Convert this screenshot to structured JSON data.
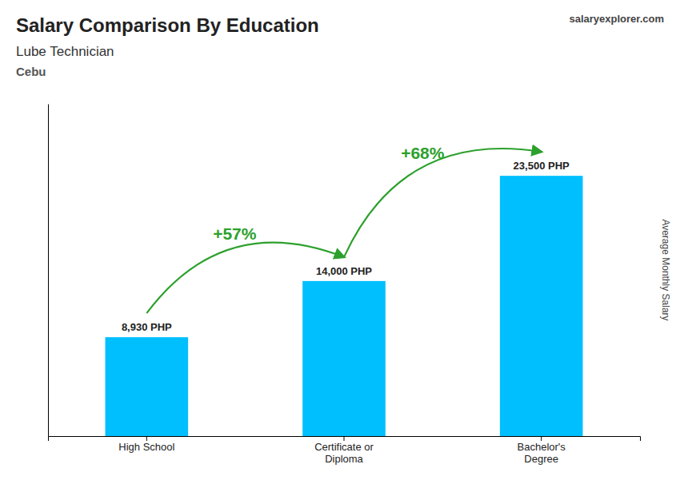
{
  "chart_data": {
    "type": "bar",
    "title": "Salary Comparison By Education",
    "subtitle": "Lube Technician",
    "annotations": [
      "Cebu",
      "+57%",
      "+68%",
      "salaryexplorer.com"
    ],
    "categories": [
      "High School",
      "Certificate or\nDiploma",
      "Bachelor's\nDegree"
    ],
    "values": [
      8930,
      14000,
      23500
    ],
    "value_labels": [
      "8,930 PHP",
      "14,000 PHP",
      "23,500 PHP"
    ],
    "data_labels": true,
    "color": "#00bfff",
    "ylabel": "Average Monthly Salary",
    "ylim": [
      0,
      30000
    ],
    "tick_labels": "x",
    "grid": false
  }
}
